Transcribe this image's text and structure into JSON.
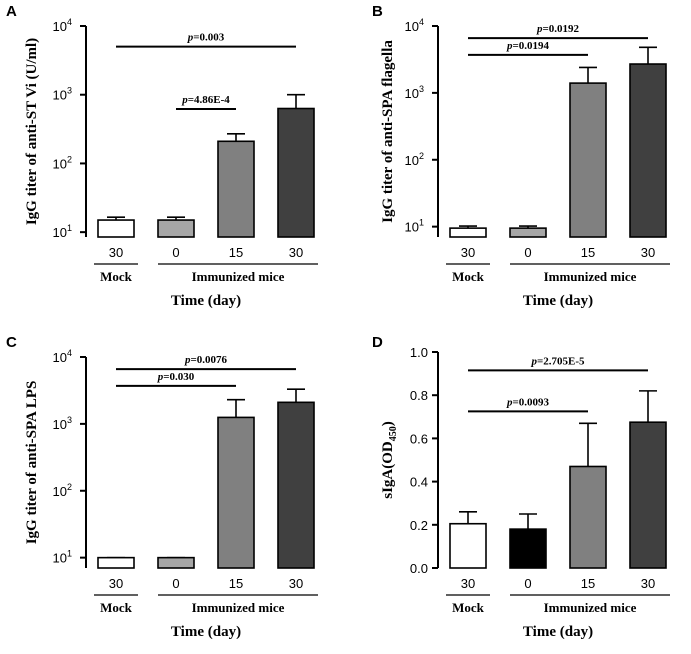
{
  "figure": {
    "xlabel": "Time (day)",
    "group_mock": "Mock",
    "group_immunized": "Immunized mice"
  },
  "chart_data": [
    {
      "panel": "A",
      "type": "bar",
      "scale": "log",
      "ylabel": "IgG  titer of anti-ST Vi (U/ml)",
      "xlabel": "Time (day)",
      "ylim": [
        8.5,
        10000
      ],
      "yticks": [
        {
          "value": 10,
          "base": "10",
          "exp": "1"
        },
        {
          "value": 100,
          "base": "10",
          "exp": "2"
        },
        {
          "value": 1000,
          "base": "10",
          "exp": "3"
        },
        {
          "value": 10000,
          "base": "10",
          "exp": "4"
        }
      ],
      "categories": [
        "30",
        "0",
        "15",
        "30"
      ],
      "groups": [
        {
          "label": "Mock",
          "categories": [
            0
          ]
        },
        {
          "label": "Immunized mice",
          "categories": [
            1,
            2,
            3
          ]
        }
      ],
      "values": [
        15,
        15,
        210,
        630
      ],
      "errors": [
        16.5,
        16.5,
        270,
        1000
      ],
      "colors": [
        "#ffffff",
        "#a6a6a6",
        "#808080",
        "#404040"
      ],
      "annotations": [
        {
          "p_label": "p",
          "p_value": "=0.003",
          "from": 0,
          "to": 3,
          "at": 5000
        },
        {
          "p_label": "p",
          "p_value": "=4.86E-4",
          "from": 1,
          "to": 2,
          "at": 620
        }
      ]
    },
    {
      "panel": "B",
      "type": "bar",
      "scale": "log",
      "ylabel": "IgG titer of anti-SPA flagella",
      "xlabel": "Time (day)",
      "ylim": [
        7,
        10000
      ],
      "yticks": [
        {
          "value": 10,
          "base": "10",
          "exp": "1"
        },
        {
          "value": 100,
          "base": "10",
          "exp": "2"
        },
        {
          "value": 1000,
          "base": "10",
          "exp": "3"
        },
        {
          "value": 10000,
          "base": "10",
          "exp": "4"
        }
      ],
      "categories": [
        "30",
        "0",
        "15",
        "30"
      ],
      "groups": [
        {
          "label": "Mock",
          "categories": [
            0
          ]
        },
        {
          "label": "Immunized mice",
          "categories": [
            1,
            2,
            3
          ]
        }
      ],
      "values": [
        9.5,
        9.5,
        1400,
        2700
      ],
      "errors": [
        10.2,
        10.2,
        2400,
        4800
      ],
      "colors": [
        "#ffffff",
        "#a6a6a6",
        "#808080",
        "#404040"
      ],
      "annotations": [
        {
          "p_label": "p",
          "p_value": "=0.0192",
          "from": 0,
          "to": 3,
          "at": 6600
        },
        {
          "p_label": "p",
          "p_value": "=0.0194",
          "from": 0,
          "to": 2,
          "at": 3700
        }
      ]
    },
    {
      "panel": "C",
      "type": "bar",
      "scale": "log",
      "ylabel": "IgG titer of anti-SPA LPS",
      "xlabel": "Time (day)",
      "ylim": [
        7,
        10000
      ],
      "yticks": [
        {
          "value": 10,
          "base": "10",
          "exp": "1"
        },
        {
          "value": 100,
          "base": "10",
          "exp": "2"
        },
        {
          "value": 1000,
          "base": "10",
          "exp": "3"
        },
        {
          "value": 10000,
          "base": "10",
          "exp": "4"
        }
      ],
      "categories": [
        "30",
        "0",
        "15",
        "30"
      ],
      "groups": [
        {
          "label": "Mock",
          "categories": [
            0
          ]
        },
        {
          "label": "Immunized mice",
          "categories": [
            1,
            2,
            3
          ]
        }
      ],
      "values": [
        10,
        10,
        1250,
        2100
      ],
      "errors": [
        10,
        10,
        2300,
        3300
      ],
      "colors": [
        "#ffffff",
        "#a6a6a6",
        "#808080",
        "#404040"
      ],
      "annotations": [
        {
          "p_label": "p",
          "p_value": "=0.0076",
          "from": 0,
          "to": 3,
          "at": 6600
        },
        {
          "p_label": "p",
          "p_value": "=0.030",
          "from": 0,
          "to": 2,
          "at": 3700
        }
      ]
    },
    {
      "panel": "D",
      "type": "bar",
      "scale": "linear",
      "ylabel": "sIgA(OD",
      "ylabel_sub": "450",
      "ylabel_close": ")",
      "xlabel": "Time (day)",
      "ylim": [
        0,
        1.0
      ],
      "yticks": [
        {
          "value": 0,
          "label": "0.0"
        },
        {
          "value": 0.2,
          "label": "0.2"
        },
        {
          "value": 0.4,
          "label": "0.4"
        },
        {
          "value": 0.6,
          "label": "0.6"
        },
        {
          "value": 0.8,
          "label": "0.8"
        },
        {
          "value": 1.0,
          "label": "1.0"
        }
      ],
      "categories": [
        "30",
        "0",
        "15",
        "30"
      ],
      "groups": [
        {
          "label": "Mock",
          "categories": [
            0
          ]
        },
        {
          "label": "Immunized mice",
          "categories": [
            1,
            2,
            3
          ]
        }
      ],
      "values": [
        0.205,
        0.18,
        0.47,
        0.675
      ],
      "errors": [
        0.26,
        0.25,
        0.67,
        0.82
      ],
      "colors": [
        "#ffffff",
        "#000000",
        "#808080",
        "#404040"
      ],
      "annotations": [
        {
          "p_label": "p",
          "p_value": "=2.705E-5",
          "from": 0,
          "to": 3,
          "at": 0.915
        },
        {
          "p_label": "p",
          "p_value": "=0.0093",
          "from": 0,
          "to": 2,
          "at": 0.725
        }
      ]
    }
  ]
}
